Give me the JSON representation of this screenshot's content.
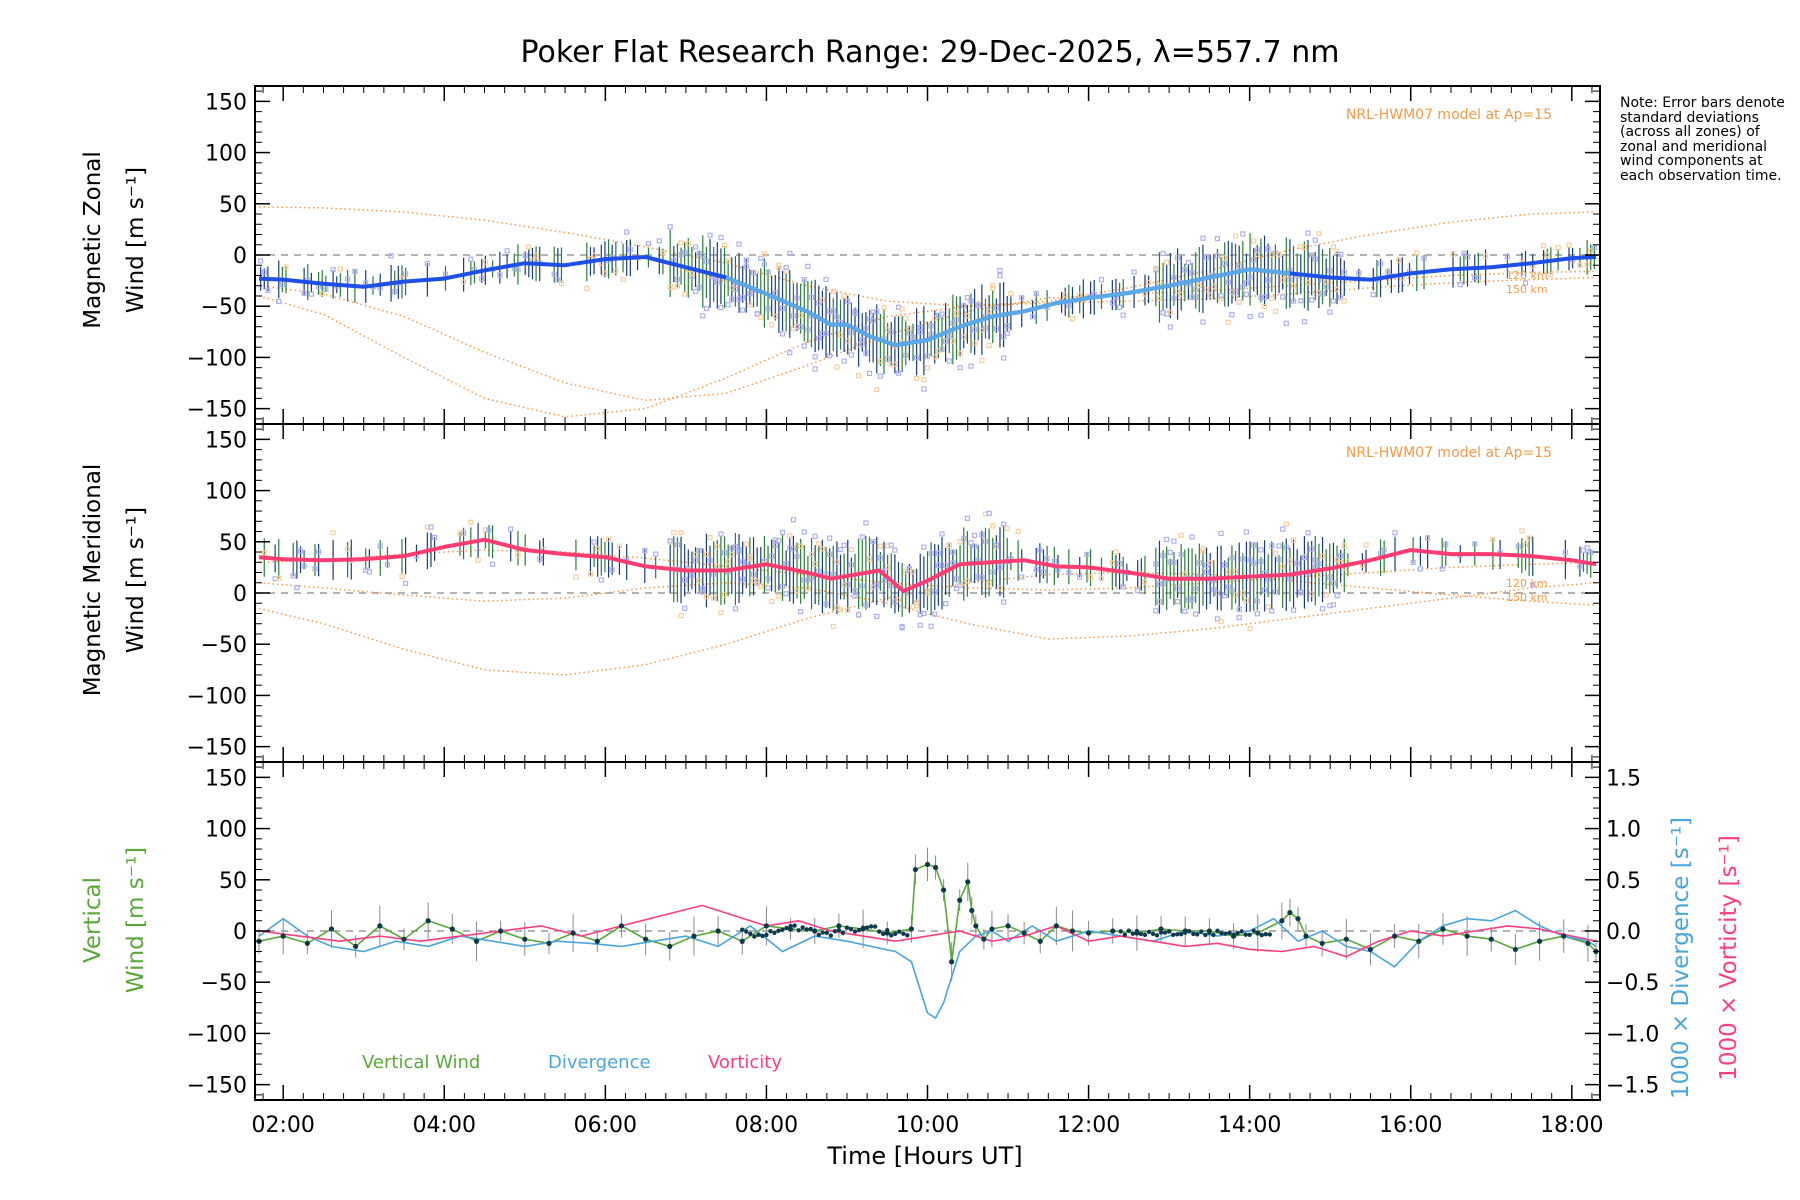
{
  "title": "Poker Flat Research Range: 29-Dec-2025, λ=557.7 nm",
  "note": "Note: Error bars denote standard deviations (across all zones) of zonal and meridional wind components at each observation time.",
  "colors": {
    "model": "#f39a4a",
    "zonal_mean": "#1e4fe6",
    "zonal_mean_late": "#5aa9e6",
    "meridional_mean": "#ff3d73",
    "zone_points": "#aeb0f0",
    "zone_points_alt": "#f8cf9f",
    "errorbar_a": "#2a7d3a",
    "errorbar_b": "#1a3d7a",
    "vertical": "#5aa83a",
    "divergence": "#4aa5dd",
    "vorticity": "#ff3d80",
    "zero_line": "#9a9a9a",
    "points": "#0d3a4a"
  },
  "chart_data": [
    {
      "type": "line",
      "panel": "zonal",
      "ylabel": "Magnetic Zonal",
      "ylabel2": "Wind [m s⁻¹]",
      "ylim": [
        -165,
        165
      ],
      "yticks": [
        -150,
        -100,
        -50,
        0,
        50,
        100,
        150
      ],
      "model_label": "NRL-HWM07 model at Ap=15",
      "model_alt_labels": [
        "120 km",
        "150 km"
      ],
      "mean_x": [
        1.7,
        2.0,
        2.5,
        3.0,
        3.5,
        4.0,
        4.5,
        5.0,
        5.5,
        6.0,
        6.5,
        7.0,
        7.5,
        8.0,
        8.5,
        8.8,
        9.0,
        9.3,
        9.6,
        10.0,
        10.4,
        10.8,
        11.2,
        11.6,
        12.0,
        12.5,
        13.0,
        13.5,
        14.0,
        14.5,
        15.0,
        15.5,
        16.0,
        16.5,
        17.0,
        17.5,
        18.0,
        18.3
      ],
      "mean_y": [
        -23,
        -24,
        -28,
        -31,
        -26,
        -23,
        -15,
        -8,
        -10,
        -4,
        -2,
        -12,
        -22,
        -38,
        -55,
        -68,
        -68,
        -80,
        -88,
        -83,
        -70,
        -60,
        -55,
        -47,
        -42,
        -37,
        -30,
        -22,
        -14,
        -18,
        -22,
        -24,
        -18,
        -14,
        -12,
        -8,
        -3,
        -2
      ],
      "model_series": [
        {
          "name": "model-a",
          "x": [
            1.7,
            2.5,
            3.5,
            4.5,
            5.5,
            6.5,
            7.5,
            8.5,
            9.5,
            10.5,
            11.5,
            12.5,
            13.5,
            14.5,
            15.5,
            16.5,
            17.5,
            18.3
          ],
          "y": [
            47,
            46,
            42,
            34,
            22,
            8,
            -8,
            -30,
            -45,
            -50,
            -45,
            -32,
            -15,
            5,
            20,
            32,
            40,
            42
          ]
        },
        {
          "name": "model-b",
          "x": [
            1.7,
            2.5,
            3.5,
            4.5,
            5.5,
            6.5,
            7.5,
            8.5,
            9.5,
            10.5,
            11.5,
            12.5,
            13.5,
            14.5,
            15.5,
            16.5,
            17.5,
            18.3
          ],
          "y": [
            -30,
            -38,
            -60,
            -95,
            -125,
            -142,
            -135,
            -108,
            -78,
            -55,
            -42,
            -38,
            -35,
            -30,
            -25,
            -20,
            -17,
            -16
          ]
        },
        {
          "name": "model-c",
          "x": [
            1.7,
            2.5,
            3.5,
            4.5,
            5.5,
            6.5,
            7.5,
            8.5,
            9.5,
            10.5,
            11.5,
            12.5,
            13.5,
            14.5,
            15.5,
            16.5,
            17.5,
            18.3
          ],
          "y": [
            -40,
            -58,
            -100,
            -140,
            -158,
            -150,
            -120,
            -85,
            -60,
            -50,
            -47,
            -45,
            -43,
            -38,
            -32,
            -27,
            -24,
            -22
          ]
        }
      ]
    },
    {
      "type": "line",
      "panel": "meridional",
      "ylabel": "Magnetic Meridional",
      "ylabel2": "Wind [m s⁻¹]",
      "ylim": [
        -165,
        165
      ],
      "yticks": [
        -150,
        -100,
        -50,
        0,
        50,
        100,
        150
      ],
      "model_label": "NRL-HWM07 model at Ap=15",
      "model_alt_labels": [
        "120 km",
        "150 km"
      ],
      "mean_x": [
        1.7,
        2.0,
        2.5,
        3.0,
        3.5,
        4.0,
        4.5,
        5.0,
        5.5,
        6.0,
        6.5,
        7.0,
        7.5,
        8.0,
        8.5,
        8.8,
        9.1,
        9.4,
        9.7,
        10.0,
        10.4,
        10.8,
        11.2,
        11.6,
        12.0,
        12.5,
        13.0,
        13.5,
        14.0,
        14.5,
        15.0,
        15.5,
        16.0,
        16.5,
        17.0,
        17.5,
        18.0,
        18.3
      ],
      "mean_y": [
        35,
        33,
        32,
        33,
        36,
        45,
        52,
        42,
        38,
        35,
        26,
        22,
        22,
        28,
        20,
        14,
        18,
        22,
        2,
        12,
        28,
        30,
        32,
        26,
        25,
        20,
        14,
        14,
        16,
        18,
        24,
        32,
        42,
        38,
        38,
        36,
        32,
        28
      ],
      "model_series": [
        {
          "name": "model-a",
          "x": [
            1.7,
            2.5,
            3.5,
            4.5,
            5.5,
            6.5,
            7.5,
            8.5,
            9.5,
            10.5,
            11.5,
            12.5,
            13.5,
            14.5,
            15.5,
            16.5,
            17.5,
            18.3
          ],
          "y": [
            30,
            32,
            38,
            42,
            40,
            34,
            26,
            18,
            10,
            5,
            3,
            5,
            10,
            15,
            20,
            25,
            28,
            30
          ]
        },
        {
          "name": "model-b",
          "x": [
            1.7,
            2.5,
            3.5,
            4.5,
            5.5,
            6.5,
            7.5,
            8.5,
            9.5,
            10.5,
            11.5,
            12.5,
            13.5,
            14.5,
            15.5,
            16.5,
            17.5,
            18.3
          ],
          "y": [
            -15,
            -30,
            -55,
            -75,
            -80,
            -70,
            -50,
            -25,
            -5,
            10,
            18,
            20,
            18,
            12,
            5,
            -2,
            -8,
            -12
          ]
        },
        {
          "name": "model-c",
          "x": [
            1.7,
            2.5,
            3.5,
            4.5,
            5.5,
            6.5,
            7.5,
            8.5,
            9.5,
            10.5,
            11.5,
            12.5,
            13.5,
            14.5,
            15.5,
            16.5,
            17.5,
            18.3
          ],
          "y": [
            10,
            5,
            -2,
            -8,
            -5,
            5,
            10,
            5,
            -10,
            -30,
            -45,
            -42,
            -35,
            -25,
            -15,
            -5,
            5,
            10
          ]
        }
      ]
    },
    {
      "type": "line",
      "panel": "vertical",
      "ylabel": "Vertical",
      "ylabel2": "Wind [m s⁻¹]",
      "ylim": [
        -165,
        165
      ],
      "yticks": [
        -150,
        -100,
        -50,
        0,
        50,
        100,
        150
      ],
      "ylabel_right1": "1000 × Divergence [s⁻¹]",
      "ylabel_right2": "1000 × Vorticity [s⁻¹]",
      "ylim_right": [
        -1.65,
        1.65
      ],
      "yticks_right": [
        -1.5,
        -1.0,
        -0.5,
        0.0,
        0.5,
        1.0,
        1.5
      ],
      "ytick_labels_right": [
        "−1.5",
        "−1.0",
        "−0.5",
        "0.0",
        "0.5",
        "1.0",
        "1.5"
      ],
      "legend": [
        "Vertical Wind",
        "Divergence",
        "Vorticity"
      ],
      "series": [
        {
          "name": "Vertical Wind",
          "axis": "left",
          "x": [
            1.7,
            2.0,
            2.3,
            2.6,
            2.9,
            3.2,
            3.5,
            3.8,
            4.1,
            4.4,
            4.7,
            5.0,
            5.3,
            5.6,
            5.9,
            6.2,
            6.5,
            6.8,
            7.1,
            7.4,
            7.7,
            8.0,
            8.3,
            8.6,
            8.9,
            9.2,
            9.5,
            9.8,
            9.85,
            10.0,
            10.1,
            10.2,
            10.3,
            10.4,
            10.5,
            10.55,
            10.6,
            10.7,
            10.8,
            11.0,
            11.2,
            11.4,
            11.6,
            11.8,
            12.0,
            12.3,
            12.6,
            12.9,
            13.2,
            13.5,
            13.8,
            14.1,
            14.4,
            14.5,
            14.6,
            14.7,
            14.9,
            15.2,
            15.5,
            15.8,
            16.1,
            16.4,
            16.7,
            17.0,
            17.3,
            17.6,
            17.9,
            18.2,
            18.3
          ],
          "y": [
            -10,
            -5,
            -12,
            2,
            -15,
            5,
            -8,
            10,
            2,
            -10,
            0,
            -8,
            -12,
            -2,
            -10,
            5,
            -8,
            -15,
            -5,
            0,
            -10,
            5,
            2,
            0,
            5,
            2,
            -2,
            2,
            60,
            65,
            62,
            40,
            -30,
            30,
            48,
            20,
            5,
            -8,
            2,
            5,
            -2,
            -10,
            5,
            0,
            -2,
            0,
            -2,
            2,
            0,
            0,
            -5,
            -2,
            10,
            18,
            12,
            -5,
            -12,
            -8,
            -18,
            -5,
            -10,
            2,
            -5,
            -8,
            -18,
            -10,
            -5,
            -12,
            -20
          ]
        },
        {
          "name": "Divergence",
          "axis": "right",
          "x": [
            1.7,
            2.0,
            2.3,
            2.6,
            3.0,
            3.4,
            3.8,
            4.2,
            4.6,
            5.0,
            5.4,
            5.8,
            6.2,
            6.6,
            7.0,
            7.4,
            7.8,
            8.2,
            8.6,
            9.0,
            9.3,
            9.6,
            9.8,
            9.9,
            10.0,
            10.1,
            10.2,
            10.4,
            10.6,
            10.8,
            11.0,
            11.3,
            11.6,
            12.0,
            12.4,
            12.8,
            13.2,
            13.6,
            14.0,
            14.3,
            14.6,
            14.9,
            15.2,
            15.5,
            15.8,
            16.1,
            16.4,
            16.7,
            17.0,
            17.3,
            17.6,
            17.9,
            18.2,
            18.3
          ],
          "y": [
            -0.05,
            0.12,
            -0.05,
            -0.15,
            -0.2,
            -0.1,
            -0.15,
            -0.05,
            -0.1,
            -0.15,
            -0.1,
            -0.12,
            -0.15,
            -0.1,
            -0.05,
            -0.15,
            0.05,
            -0.2,
            -0.05,
            -0.1,
            -0.15,
            -0.2,
            -0.3,
            -0.55,
            -0.8,
            -0.85,
            -0.7,
            -0.2,
            -0.05,
            0.0,
            -0.1,
            0.05,
            -0.1,
            0.0,
            -0.05,
            -0.1,
            0.0,
            -0.05,
            0.0,
            0.12,
            -0.1,
            0.0,
            -0.15,
            -0.2,
            -0.35,
            -0.1,
            0.05,
            0.12,
            0.1,
            0.2,
            0.05,
            -0.05,
            -0.1,
            -0.15
          ]
        },
        {
          "name": "Vorticity",
          "axis": "right",
          "x": [
            1.7,
            2.2,
            2.7,
            3.2,
            3.7,
            4.2,
            4.7,
            5.2,
            5.7,
            6.2,
            6.7,
            7.2,
            7.6,
            8.0,
            8.4,
            8.8,
            9.2,
            9.6,
            10.0,
            10.4,
            10.8,
            11.2,
            11.6,
            12.0,
            12.4,
            12.8,
            13.2,
            13.6,
            14.0,
            14.4,
            14.8,
            15.2,
            15.6,
            16.0,
            16.4,
            16.8,
            17.2,
            17.6,
            18.0,
            18.3
          ],
          "y": [
            0.0,
            -0.05,
            -0.1,
            -0.05,
            -0.1,
            -0.05,
            0.0,
            0.05,
            -0.05,
            0.05,
            0.15,
            0.25,
            0.15,
            0.05,
            0.1,
            0.0,
            -0.05,
            -0.1,
            -0.05,
            0.0,
            -0.1,
            -0.05,
            0.05,
            -0.1,
            -0.05,
            -0.1,
            -0.15,
            -0.12,
            -0.18,
            -0.2,
            -0.15,
            -0.25,
            -0.1,
            0.0,
            -0.05,
            0.0,
            0.05,
            0.02,
            -0.05,
            -0.1
          ]
        }
      ]
    }
  ],
  "xaxis": {
    "label": "Time [Hours UT]",
    "xlim": [
      1.65,
      18.35
    ],
    "ticks": [
      2,
      4,
      6,
      8,
      10,
      12,
      14,
      16,
      18
    ],
    "tick_labels": [
      "02:00",
      "04:00",
      "06:00",
      "08:00",
      "10:00",
      "12:00",
      "14:00",
      "16:00",
      "18:00"
    ]
  }
}
